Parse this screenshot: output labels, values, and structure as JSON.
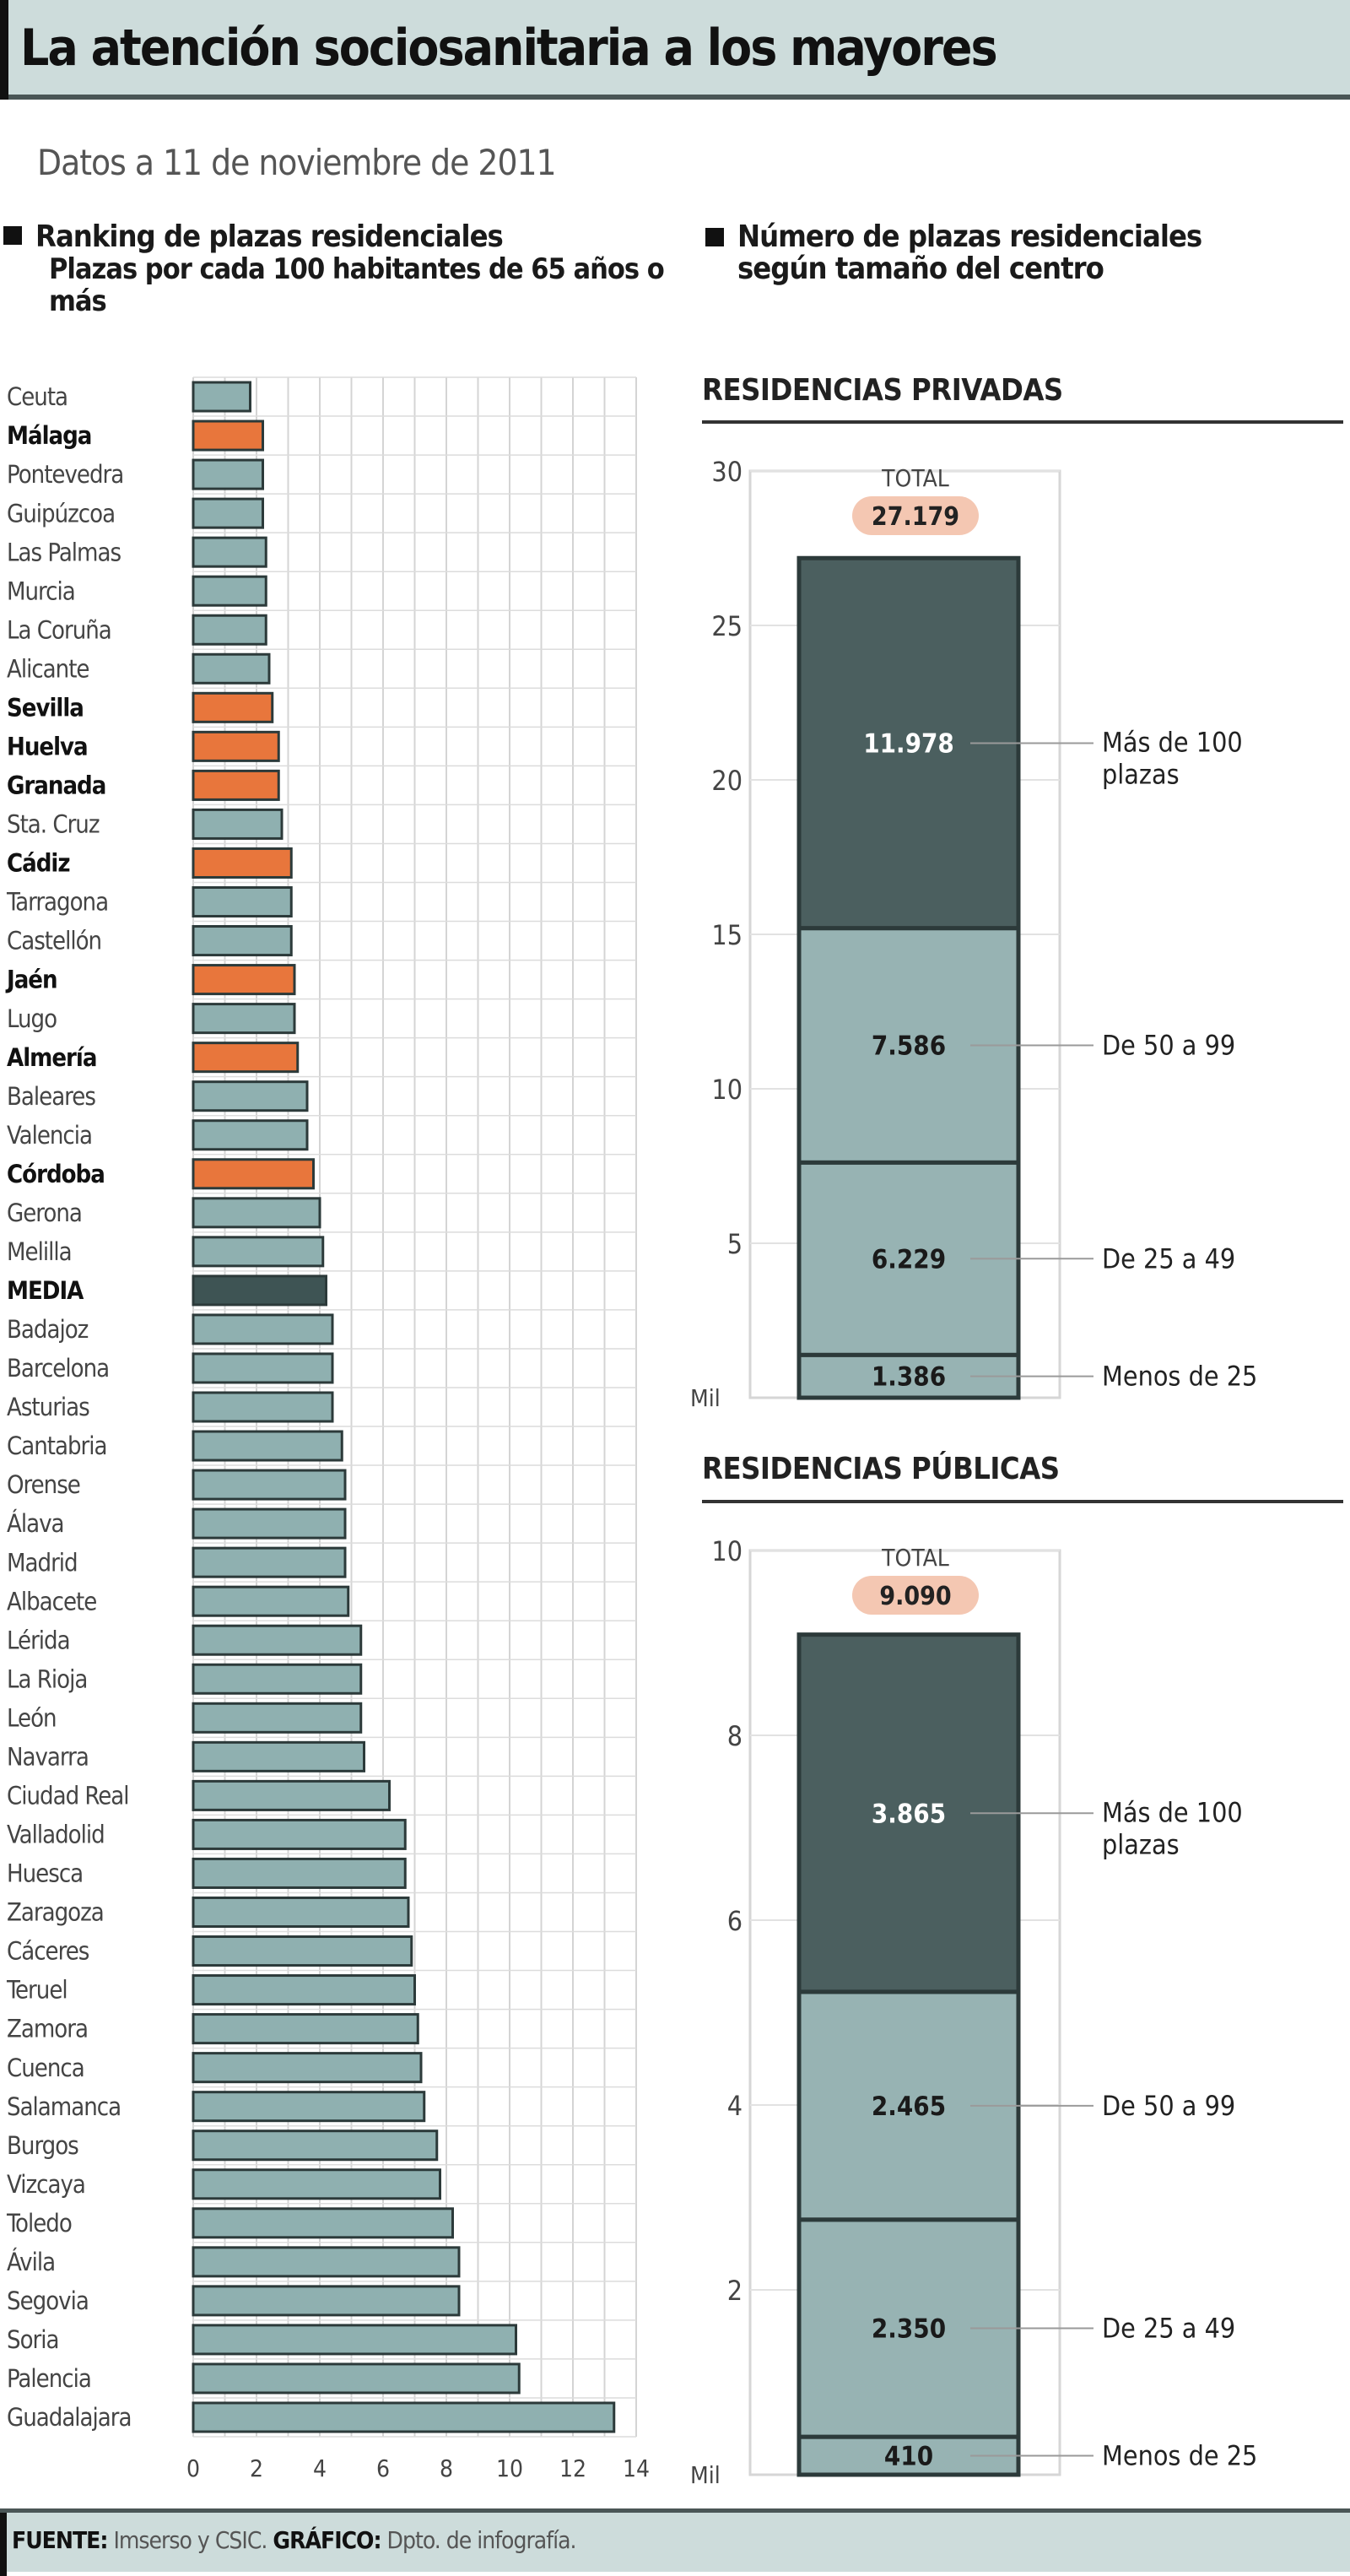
{
  "header": {
    "title": "La atención sociosanitaria a los mayores"
  },
  "subtitle": "Datos a 11 de noviembre de 2011",
  "footer": {
    "source_label": "FUENTE:",
    "source": "Imserso y CSIC.",
    "graphic_label": "GRÁFICO:",
    "graphic": "Dpto. de infografía."
  },
  "colors": {
    "bar": "#8fb0b0",
    "highlight": "#e8763c",
    "media": "#3e5454",
    "segment_dark": "#4b5f5f",
    "segment_light": "#97b3b3",
    "total_badge": "#f4c7b2",
    "outline": "#2c3a3a"
  },
  "chart_data": [
    {
      "type": "bar",
      "orientation": "horizontal",
      "title": "Ranking de plazas residenciales",
      "subtitle": "Plazas por cada 100 habitantes de 65 años o más",
      "xlim": [
        0,
        14
      ],
      "xticks": [
        "0",
        "2",
        "4",
        "6",
        "8",
        "10",
        "12",
        "14"
      ],
      "grid": true,
      "categories": [
        "Ceuta",
        "Málaga",
        "Pontevedra",
        "Guipúzcoa",
        "Las Palmas",
        "Murcia",
        "La Coruña",
        "Alicante",
        "Sevilla",
        "Huelva",
        "Granada",
        "Sta. Cruz",
        "Cádiz",
        "Tarragona",
        "Castellón",
        "Jaén",
        "Lugo",
        "Almería",
        "Baleares",
        "Valencia",
        "Córdoba",
        "Gerona",
        "Melilla",
        "MEDIA",
        "Badajoz",
        "Barcelona",
        "Asturias",
        "Cantabria",
        "Orense",
        "Álava",
        "Madrid",
        "Albacete",
        "Lérida",
        "La Rioja",
        "León",
        "Navarra",
        "Ciudad Real",
        "Valladolid",
        "Huesca",
        "Zaragoza",
        "Cáceres",
        "Teruel",
        "Zamora",
        "Cuenca",
        "Salamanca",
        "Burgos",
        "Vizcaya",
        "Toledo",
        "Ávila",
        "Segovia",
        "Soria",
        "Palencia",
        "Guadalajara"
      ],
      "values": [
        1.8,
        2.2,
        2.2,
        2.2,
        2.3,
        2.3,
        2.3,
        2.4,
        2.5,
        2.7,
        2.7,
        2.8,
        3.1,
        3.1,
        3.1,
        3.2,
        3.2,
        3.3,
        3.6,
        3.6,
        3.8,
        4.0,
        4.1,
        4.2,
        4.4,
        4.4,
        4.4,
        4.7,
        4.8,
        4.8,
        4.8,
        4.9,
        5.3,
        5.3,
        5.3,
        5.4,
        6.2,
        6.7,
        6.7,
        6.8,
        6.9,
        7.0,
        7.1,
        7.2,
        7.3,
        7.7,
        7.8,
        8.2,
        8.4,
        8.4,
        10.2,
        10.3,
        13.3
      ],
      "highlighted": [
        "Málaga",
        "Sevilla",
        "Huelva",
        "Granada",
        "Cádiz",
        "Jaén",
        "Almería",
        "Córdoba"
      ],
      "average": "MEDIA"
    },
    {
      "type": "bar",
      "stacked": true,
      "title": "Número de plazas residenciales según tamaño del centro",
      "panel": "RESIDENCIAS PRIVADAS",
      "ylabel": "Mil",
      "ylim": [
        0,
        30
      ],
      "yticks": [
        "5",
        "10",
        "15",
        "20",
        "25",
        "30"
      ],
      "total_label": "TOTAL",
      "total": "27.179",
      "series": [
        {
          "name": "Menos de 25",
          "value": 1386,
          "label": "1.386"
        },
        {
          "name": "De 25 a 49",
          "value": 6229,
          "label": "6.229"
        },
        {
          "name": "De 50 a 99",
          "value": 7586,
          "label": "7.586"
        },
        {
          "name": "Más de 100 plazas",
          "value": 11978,
          "label": "11.978"
        }
      ]
    },
    {
      "type": "bar",
      "stacked": true,
      "panel": "RESIDENCIAS PÚBLICAS",
      "ylabel": "Mil",
      "ylim": [
        0,
        10
      ],
      "yticks": [
        "2",
        "4",
        "6",
        "8",
        "10"
      ],
      "total_label": "TOTAL",
      "total": "9.090",
      "series": [
        {
          "name": "Menos de 25",
          "value": 410,
          "label": "410"
        },
        {
          "name": "De 25 a 49",
          "value": 2350,
          "label": "2.350"
        },
        {
          "name": "De 50 a 99",
          "value": 2465,
          "label": "2.465"
        },
        {
          "name": "Más de 100 plazas",
          "value": 3865,
          "label": "3.865"
        }
      ]
    }
  ]
}
